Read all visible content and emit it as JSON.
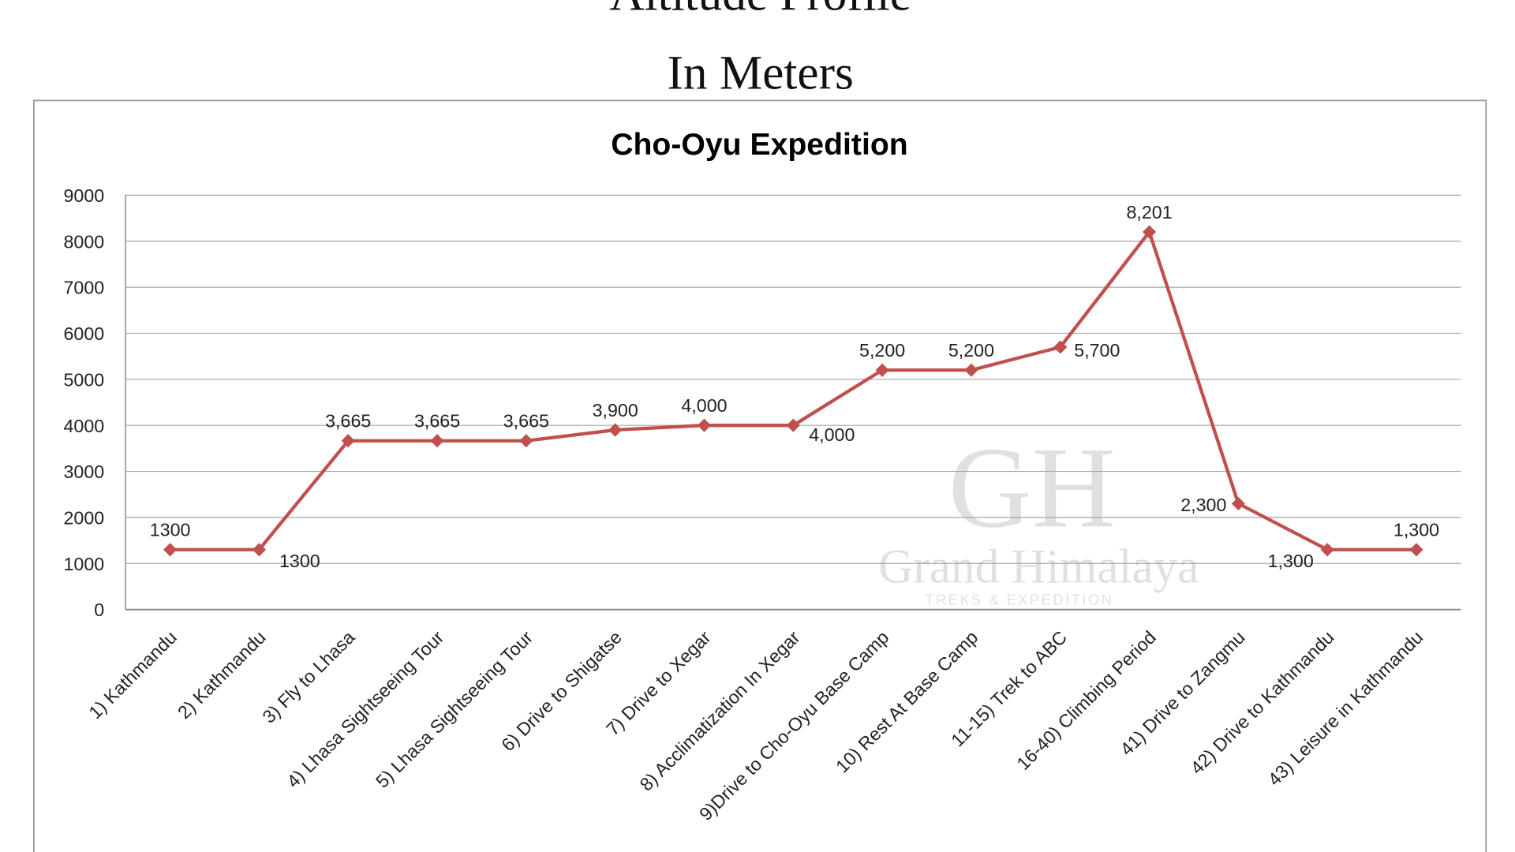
{
  "page": {
    "heading_line1": "Altitude Profile",
    "heading_line2": "In Meters"
  },
  "watermark": {
    "monogram": "GH",
    "name": "Grand Himalaya",
    "tagline": "TREKS & EXPEDITION"
  },
  "chart_data": {
    "type": "line",
    "title": "Cho-Oyu Expedition",
    "xlabel": "",
    "ylabel": "",
    "ylim": [
      0,
      9000
    ],
    "yticks": [
      "0",
      "1000",
      "2000",
      "3000",
      "4000",
      "5000",
      "6000",
      "7000",
      "8000",
      "9000"
    ],
    "grid": true,
    "legend": "none",
    "line_color": "#c0504d",
    "marker": "diamond",
    "categories": [
      "1) Kathmandu",
      "2) Kathmandu",
      "3) Fly to Lhasa",
      "4) Lhasa Sightseeing Tour",
      "5) Lhasa Sightseeing Tour",
      "6) Drive to Shigatse",
      "7) Drive to Xegar",
      "8) Acclimatization In Xegar",
      "9)Drive to Cho-Oyu Base Camp",
      "10) Rest At Base Camp",
      "11-15) Trek to ABC",
      "16-40) Climbing Period",
      "41) Drive to Zangmu",
      "42) Drive to Kathmandu",
      "43) Leisure in Kathmandu"
    ],
    "values": [
      1300,
      1300,
      3665,
      3665,
      3665,
      3900,
      4000,
      4000,
      5200,
      5200,
      5700,
      8201,
      2300,
      1300,
      1300
    ],
    "data_labels": [
      "1300",
      "1300",
      "3,665",
      "3,665",
      "3,665",
      "3,900",
      "4,000",
      "4,000",
      "5,200",
      "5,200",
      "5,700",
      "8,201",
      "2,300",
      "1,300",
      "1,300"
    ]
  }
}
